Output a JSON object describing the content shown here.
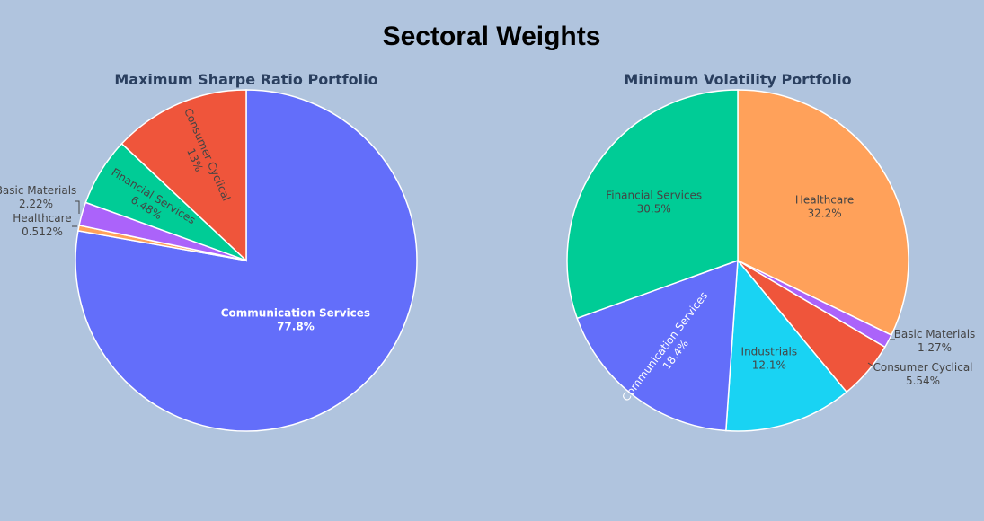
{
  "title": "Sectoral Weights",
  "colors": {
    "background": "#b0c4de",
    "slice_border": "#ffffff",
    "Communication Services": "#636efa",
    "Consumer Cyclical": "#ef553b",
    "Financial Services": "#00cc96",
    "Basic Materials": "#ab63fa",
    "Healthcare": "#ffa15a",
    "Industrials": "#19d3f3"
  },
  "chart_data": [
    {
      "type": "pie",
      "title": "Maximum Sharpe Ratio Portfolio",
      "direction": "clockwise",
      "start_angle_deg": 0,
      "slices": [
        {
          "label": "Communication Services",
          "value": 77.8,
          "text": "77.8%",
          "label_position": "inside",
          "text_color": "#ffffff"
        },
        {
          "label": "Healthcare",
          "value": 0.512,
          "text": "0.512%",
          "label_position": "outside"
        },
        {
          "label": "Basic Materials",
          "value": 2.22,
          "text": "2.22%",
          "label_position": "outside"
        },
        {
          "label": "Financial Services",
          "value": 6.48,
          "text": "6.48%",
          "label_position": "inside-radial"
        },
        {
          "label": "Consumer Cyclical",
          "value": 13,
          "text": "13%",
          "label_position": "inside-radial"
        }
      ]
    },
    {
      "type": "pie",
      "title": "Minimum Volatility Portfolio",
      "direction": "clockwise",
      "start_angle_deg": 0,
      "slices": [
        {
          "label": "Healthcare",
          "value": 32.2,
          "text": "32.2%",
          "label_position": "inside"
        },
        {
          "label": "Basic Materials",
          "value": 1.27,
          "text": "1.27%",
          "label_position": "outside"
        },
        {
          "label": "Consumer Cyclical",
          "value": 5.54,
          "text": "5.54%",
          "label_position": "outside"
        },
        {
          "label": "Industrials",
          "value": 12.1,
          "text": "12.1%",
          "label_position": "inside"
        },
        {
          "label": "Communication Services",
          "value": 18.4,
          "text": "18.4%",
          "label_position": "inside-radial",
          "text_color": "#ffffff"
        },
        {
          "label": "Financial Services",
          "value": 30.5,
          "text": "30.5%",
          "label_position": "inside"
        }
      ]
    }
  ]
}
